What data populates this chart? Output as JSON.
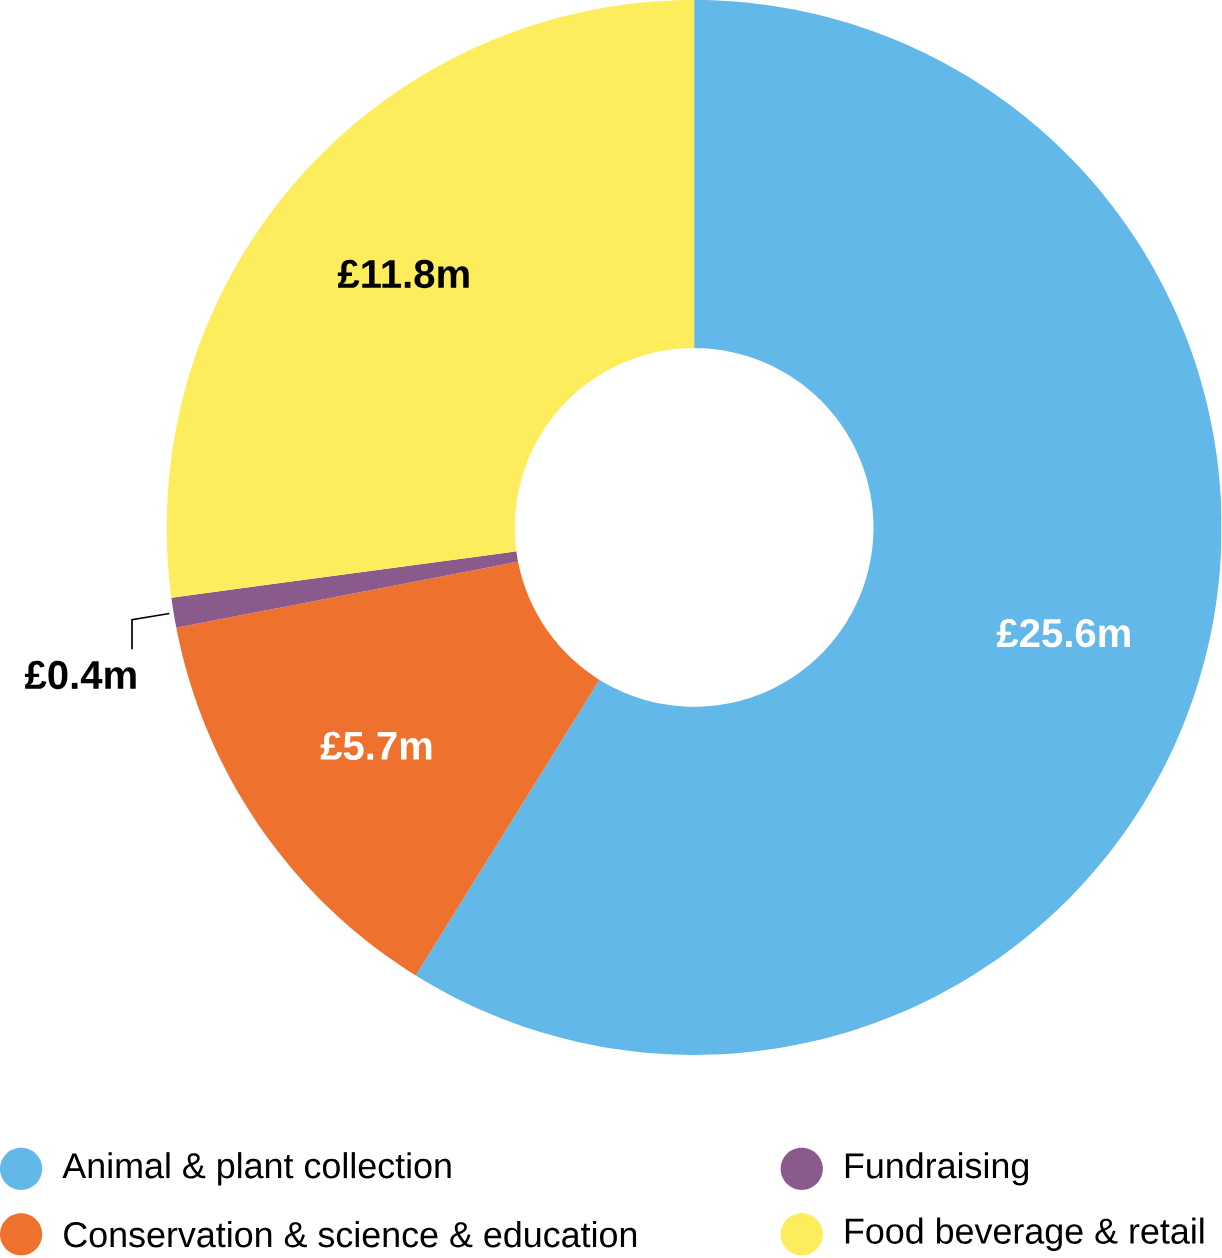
{
  "chart_data": {
    "type": "donut",
    "categories": [
      "Animal & plant collection",
      "Conservation & science & education",
      "Fundraising",
      "Food beverage & retail"
    ],
    "values": [
      25.6,
      5.7,
      0.4,
      11.8
    ],
    "colors": [
      "#62b8e8",
      "#ee722d",
      "#8b5a8c",
      "#fded5d"
    ],
    "value_labels": [
      "£25.6m",
      "£5.7m",
      "£0.4m",
      "£11.8m"
    ],
    "legend": "bottom"
  }
}
